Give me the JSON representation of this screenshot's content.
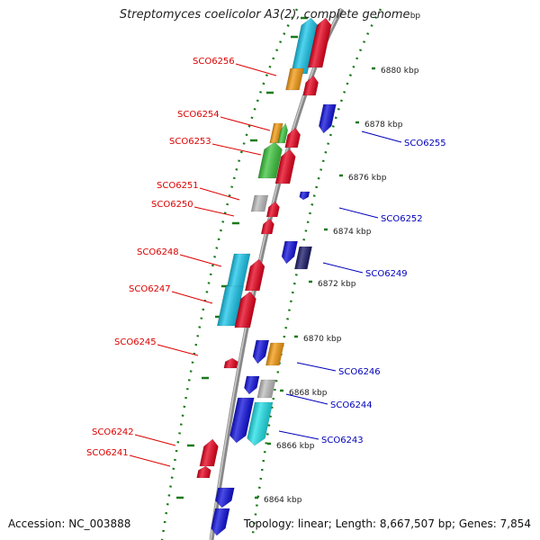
{
  "title": "Streptomyces coelicolor A3(2), complete genome",
  "title_fragment": "bp",
  "footer": {
    "accession": "Accession: NC_003888",
    "summary": "Topology: linear; Length: 8,667,507 bp; Genes: 7,854"
  },
  "colors": {
    "forward_label": "#dd0000",
    "reverse_label": "#0000bb",
    "tick": "#1a7a1a",
    "backbone": "#888888",
    "red": "#e8001c",
    "blue": "#1010dd",
    "cyan": "#18c6ea",
    "orange": "#f59a10",
    "green": "#3cc43c",
    "gray": "#bdbdbd",
    "aqua": "#1fe0e8",
    "navy": "#1a1a6a"
  },
  "ticks": [
    {
      "label": "6864 kbp"
    },
    {
      "label": "6866 kbp"
    },
    {
      "label": "6868 kbp"
    },
    {
      "label": "6870 kbp"
    },
    {
      "label": "6872 kbp"
    },
    {
      "label": "6874 kbp"
    },
    {
      "label": "6876 kbp"
    },
    {
      "label": "6878 kbp"
    },
    {
      "label": "6880 kbp"
    }
  ],
  "forward_labels": [
    "SCO6256",
    "SCO6254",
    "SCO6253",
    "SCO6251",
    "SCO6250",
    "SCO6248",
    "SCO6247",
    "SCO6245",
    "SCO6242",
    "SCO6241"
  ],
  "reverse_labels": [
    "SCO6255",
    "SCO6252",
    "SCO6249",
    "SCO6246",
    "SCO6244",
    "SCO6243"
  ]
}
